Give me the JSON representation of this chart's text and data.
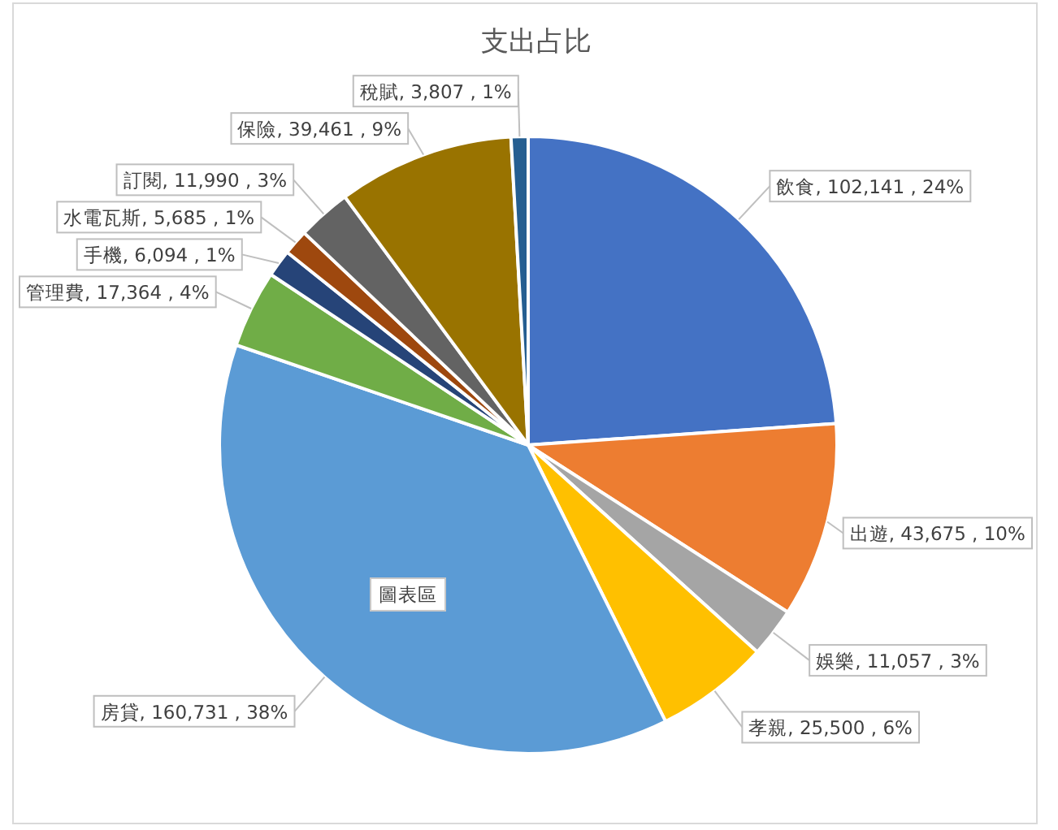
{
  "chart_data": {
    "type": "pie",
    "title": "支出占比",
    "categories": [
      "飲食",
      "出遊",
      "娛樂",
      "孝親",
      "房貸",
      "管理費",
      "手機",
      "水電瓦斯",
      "訂閱",
      "保險",
      "稅賦"
    ],
    "values": [
      102141,
      43675,
      11057,
      25500,
      160731,
      17364,
      6094,
      5685,
      11990,
      39461,
      3807
    ],
    "value_labels": [
      "102,141 , 24%",
      "43,675 , 10%",
      "11,057 , 3%",
      "25,500 , 6%",
      "160,731 , 38%",
      "17,364 , 4%",
      "6,094 , 1%",
      "5,685 , 1%",
      "11,990 , 3%",
      "39,461 , 9%",
      "3,807 , 1%"
    ],
    "colors": [
      "#4472c4",
      "#ed7d31",
      "#a5a5a5",
      "#ffc000",
      "#5b9bd5",
      "#70ad47",
      "#264478",
      "#9e480e",
      "#636363",
      "#997300",
      "#255e91"
    ],
    "annotations": [
      "圖表區"
    ]
  }
}
